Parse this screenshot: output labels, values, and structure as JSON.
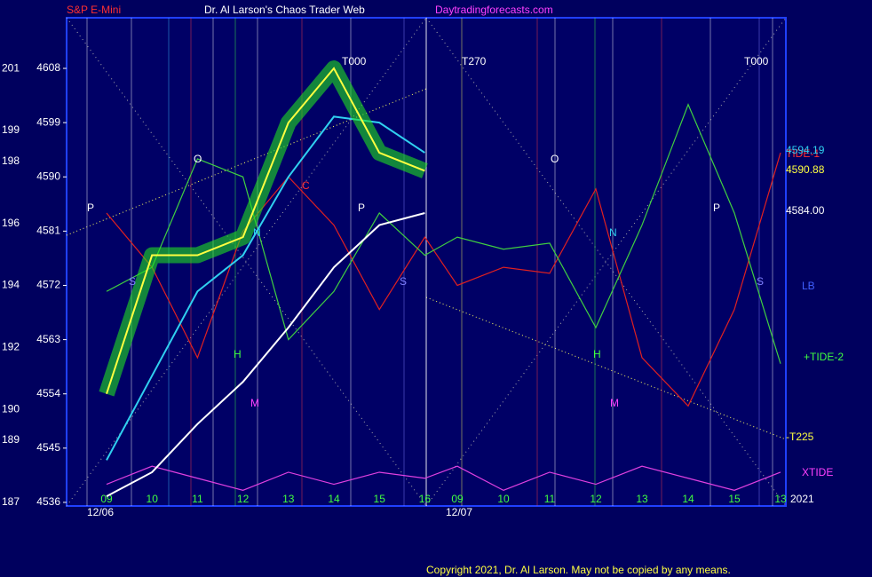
{
  "chart_data": {
    "type": "line",
    "title": "Dr. Al Larson's Chaos Trader Web",
    "subtitle": "S&P E-Mini",
    "site": "Daytradingforecasts.com",
    "copyright": "Copyright 2021, Dr. Al Larson. May not be copied by any means.",
    "categories": [
      "09",
      "10",
      "11",
      "12",
      "13",
      "14",
      "15",
      "16",
      "09",
      "10",
      "11",
      "12",
      "13",
      "14",
      "15",
      "13"
    ],
    "dates": [
      "12/06",
      "12/07"
    ],
    "year": "2021",
    "ylim": [
      4535.4,
      4616.4
    ],
    "yticks": [
      4536,
      4545,
      4554,
      4563,
      4572,
      4581,
      4590,
      4599,
      4608
    ],
    "y2lim": [
      186.88,
      202.64
    ],
    "y2ticks": [
      187,
      189,
      190,
      192,
      194,
      196,
      198,
      199,
      201
    ],
    "series": [
      {
        "name": "TIDE-1",
        "color": "#e02020",
        "values": [
          4584,
          4575,
          4560,
          4581,
          4590,
          4582,
          4568,
          4580,
          4572,
          4575,
          4574,
          4588,
          4560,
          4552,
          4568,
          4594
        ]
      },
      {
        "name": "+TIDE-2",
        "color": "#40d040",
        "values": [
          4571,
          4575,
          4593,
          4590,
          4563,
          4571,
          4584,
          4577,
          4580,
          4578,
          4579,
          4565,
          4582,
          4602,
          4584,
          4559
        ]
      },
      {
        "name": "XTIDE",
        "color": "#e040e0",
        "values": [
          4539,
          4542,
          4540,
          4538,
          4541,
          4539,
          4541,
          4540,
          4542,
          4538,
          4541,
          4539,
          4542,
          4540,
          4538,
          4541
        ]
      },
      {
        "name": "4584.00",
        "color": "#ffffff",
        "values": [
          4537,
          4541,
          4549,
          4556,
          4565,
          4575,
          4582,
          4584,
          null,
          null,
          null,
          null,
          null,
          null,
          null,
          null
        ]
      },
      {
        "name": "4594.19",
        "color": "#30d0f0",
        "values": [
          4543,
          4557,
          4571,
          4577,
          4590,
          4600,
          4599,
          4594,
          null,
          null,
          null,
          null,
          null,
          null,
          null,
          null
        ]
      },
      {
        "name": "4590.88",
        "color": "#ffff40",
        "values": [
          4554,
          4577,
          4577,
          4580,
          4599,
          4608,
          4594,
          4591,
          null,
          null,
          null,
          null,
          null,
          null,
          null,
          null
        ]
      }
    ],
    "annotations": [
      "T000",
      "T270",
      "T000",
      "-T225",
      "LB",
      "P",
      "O",
      "S",
      "N",
      "H",
      "M",
      "C",
      "P",
      "O",
      "S",
      "N",
      "H",
      "M",
      "P",
      "S"
    ]
  }
}
